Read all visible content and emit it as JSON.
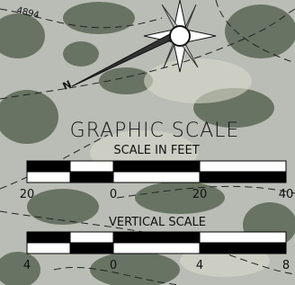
{
  "contour_label": "4894",
  "north_label": "N",
  "graphic_scale": {
    "title": "GRAPHIC SCALE",
    "subtitle": "SCALE IN FEET",
    "labels": [
      "20",
      "0",
      "20",
      "40"
    ]
  },
  "vertical_scale": {
    "title": "VERTICAL SCALE",
    "labels": [
      "4",
      "0",
      "4",
      "8"
    ]
  }
}
